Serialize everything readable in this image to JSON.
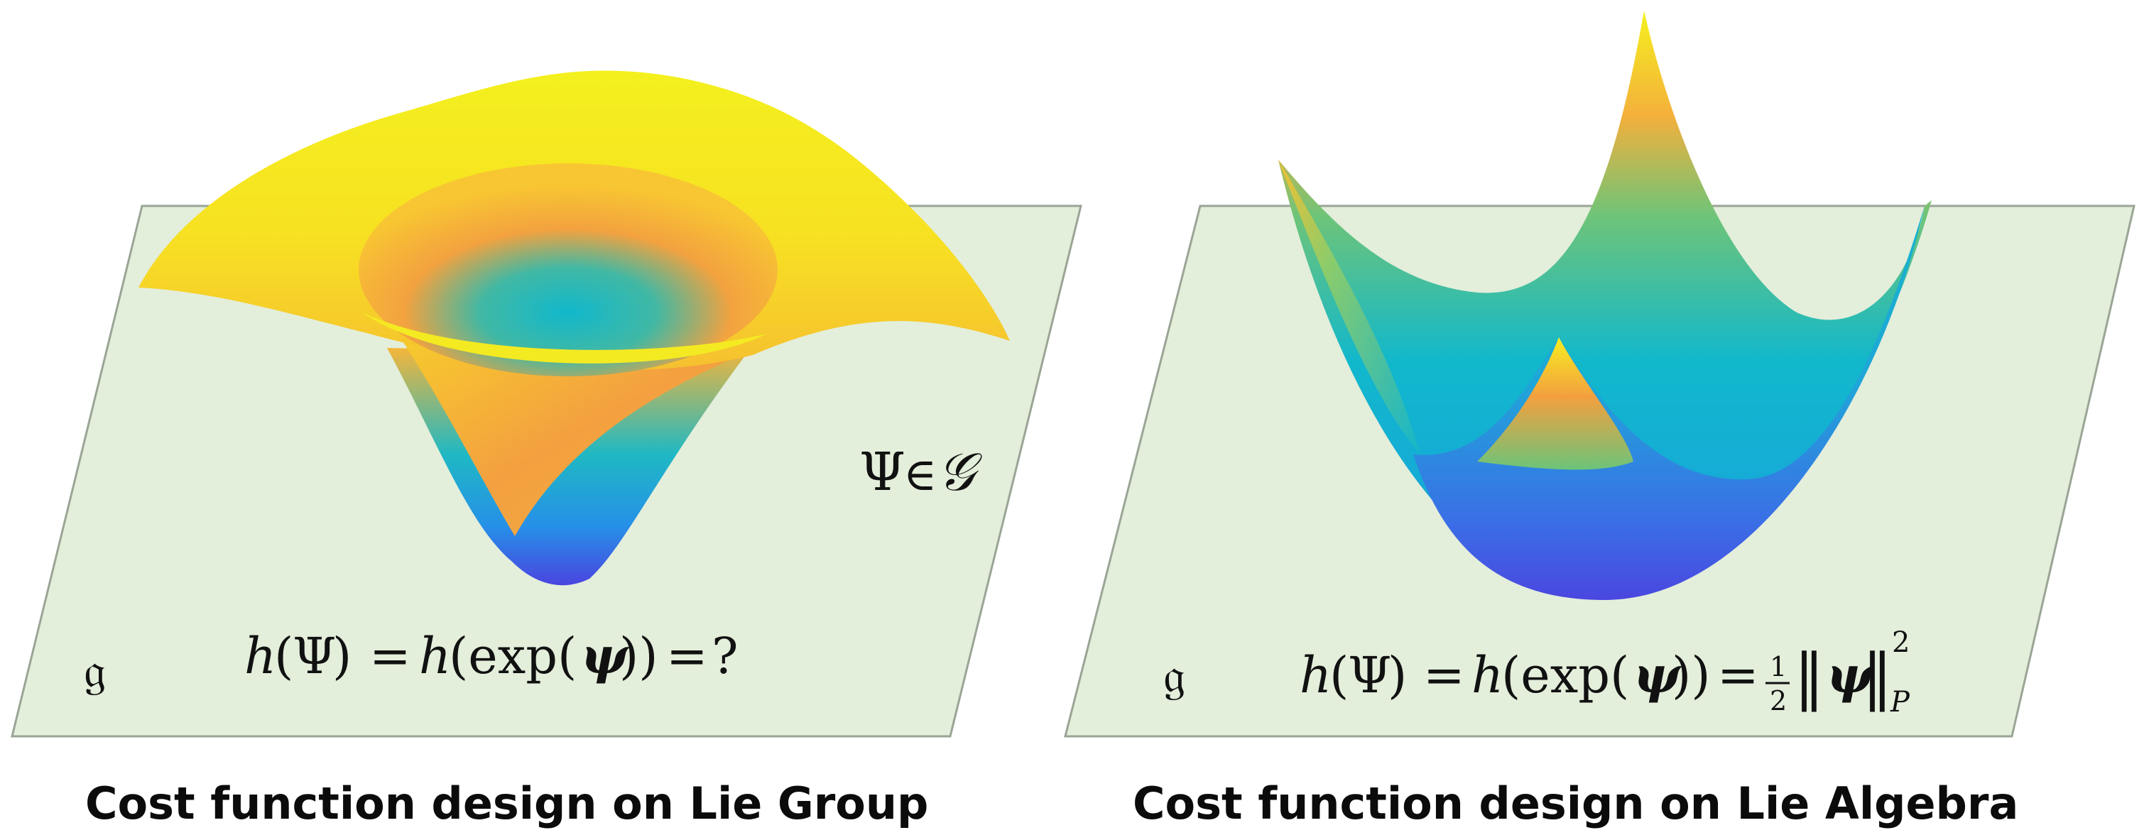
{
  "left_panel": {
    "algebra_symbol": "𝔤",
    "group_label": {
      "psi": "Ψ",
      "in": "∈",
      "group": "𝒢"
    },
    "formula": {
      "h1": "h",
      "open1": "(",
      "psi": "Ψ",
      "close1": ")",
      "eq1": "=",
      "h2": "h",
      "exp": "(exp(",
      "psi_bold": "ψ",
      "close2": "))",
      "eq2": "=",
      "rhs": "?"
    },
    "caption": "Cost function design on Lie Group"
  },
  "right_panel": {
    "algebra_symbol": "𝔤",
    "formula": {
      "h1": "h",
      "open1": "(",
      "psi": "Ψ",
      "close1": ")",
      "eq1": "=",
      "h2": "h",
      "exp": "(exp(",
      "psi_bold": "ψ",
      "close2": "))",
      "eq2": "=",
      "frac_num": "1",
      "frac_den": "2",
      "norm_open": "‖",
      "norm_close": "‖",
      "sup": "2",
      "sub": "P"
    },
    "caption": "Cost function design on Lie Algebra"
  },
  "colors": {
    "plane_fill": "#e3eedb",
    "plane_stroke": "#9aa596",
    "surface_yellow": "#f5f01f",
    "surface_orange": "#f6ac40",
    "surface_teal": "#13b8cc",
    "surface_blue": "#4a49e0"
  }
}
